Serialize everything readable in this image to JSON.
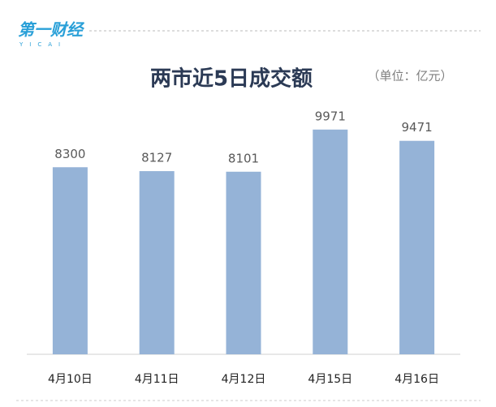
{
  "logo": "第一财经",
  "logo_sub": "YICAI",
  "chart_data": {
    "type": "bar",
    "title": "两市近5日成交额",
    "unit": "（单位：亿元）",
    "categories": [
      "4月10日",
      "4月11日",
      "4月12日",
      "4月15日",
      "4月16日"
    ],
    "values": [
      8300,
      8127,
      8101,
      9971,
      9471
    ],
    "color": "#95b3d7",
    "ylim": [
      0,
      10000
    ]
  }
}
